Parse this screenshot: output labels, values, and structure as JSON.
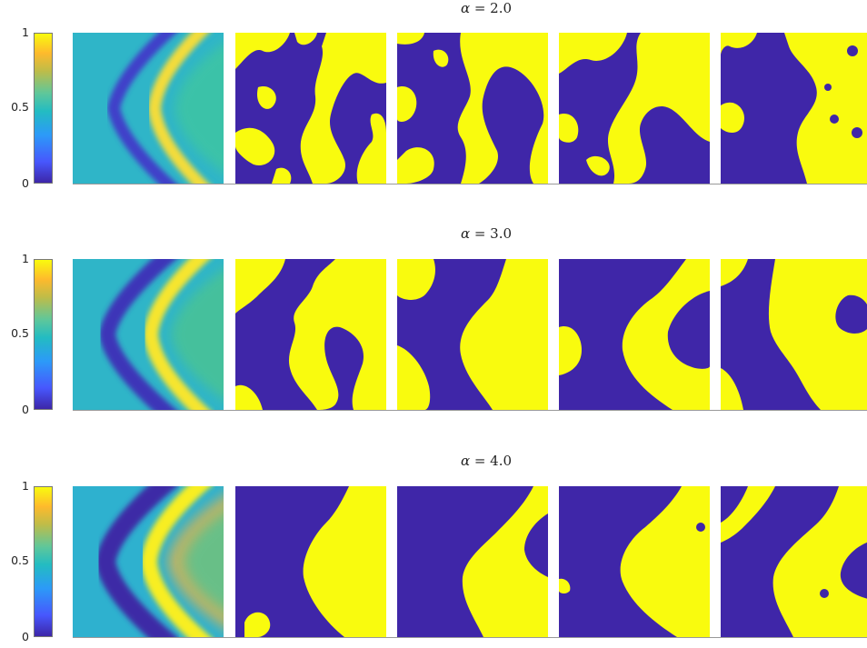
{
  "rows": [
    {
      "alpha_symbol": "α",
      "alpha_text": " = 2.0"
    },
    {
      "alpha_symbol": "α",
      "alpha_text": " = 3.0"
    },
    {
      "alpha_symbol": "α",
      "alpha_text": " = 4.0"
    }
  ],
  "colorbar": {
    "ticks": [
      "1",
      "0.5",
      "0"
    ]
  },
  "colors": {
    "low": "#3f26a8",
    "high": "#f9fb0e",
    "mid": "#30c1aa"
  }
}
